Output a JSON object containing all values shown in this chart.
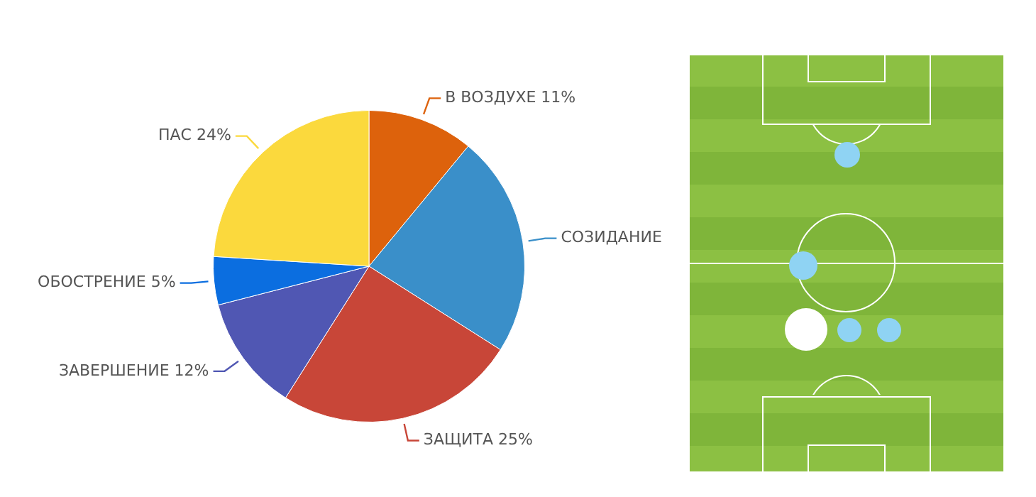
{
  "chart_data": {
    "type": "pie",
    "categories": [
      "В ВОЗДУХЕ",
      "СОЗИДАНИЕ",
      "ЗАЩИТА",
      "ЗАВЕРШЕНИЕ",
      "ОБОСТРЕНИЕ",
      "ПАС"
    ],
    "values": [
      11,
      23,
      25,
      12,
      5,
      24
    ],
    "colors": [
      "#dd620c",
      "#3a8fc9",
      "#c84638",
      "#5057b3",
      "#0b6ee0",
      "#fbd93d"
    ],
    "value_labels": [
      "11%",
      null,
      "25%",
      "12%",
      "5%",
      "24%"
    ],
    "legend": false
  }
}
